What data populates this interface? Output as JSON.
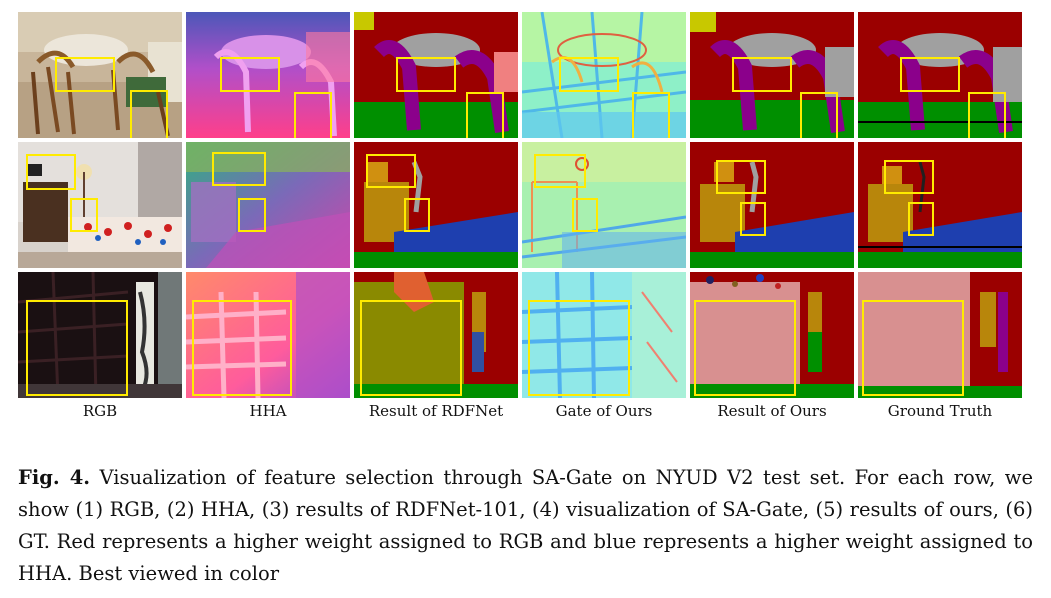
{
  "figure": {
    "columns": [
      {
        "label": "RGB"
      },
      {
        "label": "HHA"
      },
      {
        "label": "Result of RDFNet"
      },
      {
        "label": "Gate of Ours"
      },
      {
        "label": "Result of Ours"
      },
      {
        "label": "Ground Truth"
      }
    ]
  },
  "caption": {
    "label": "Fig. 4.",
    "text": "Visualization of feature selection through SA-Gate on NYUD V2 test set. For each row, we show (1) RGB, (2) HHA, (3) results of RDFNet-101, (4) visualization of SA-Gate, (5) results of ours, (6) GT. Red represents a higher weight assigned to RGB and blue represents a higher weight assigned to HHA. Best viewed in color"
  },
  "colors": {
    "highlight_box": "#ffeb00",
    "seg_wall": "#9b0000",
    "seg_furniture": "#8b008b",
    "seg_floor": "#008f00",
    "seg_table": "#a0a0a0",
    "seg_bed": "#1e3faf",
    "seg_cabinet": "#b8860b",
    "seg_shelf_ours": "#d89090",
    "seg_shelf_rdf": "#8a8a00"
  }
}
